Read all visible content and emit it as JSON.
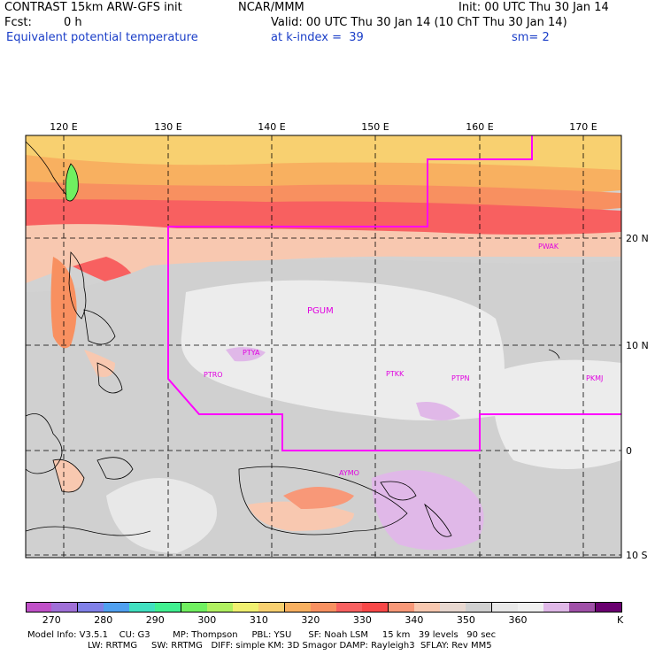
{
  "header": {
    "model_title": "CONTRAST 15km ARW-GFS init",
    "org": "NCAR/MMM",
    "init_text": "Init: 00 UTC Thu 30 Jan 14",
    "fcst_label": "Fcst:",
    "fcst_value": "0 h",
    "valid_text": "Valid: 00 UTC Thu 30 Jan 14 (10 ChT Thu 30 Jan 14)",
    "field_name": "Equivalent potential temperature",
    "level_text": "at k-index =  39",
    "smooth_text": "sm= 2"
  },
  "axes": {
    "lon_labels": [
      "120 E",
      "130 E",
      "140 E",
      "150 E",
      "160 E",
      "170 E"
    ],
    "lat_labels": [
      "20 N",
      "10 N",
      "0",
      "10 S"
    ]
  },
  "stations": [
    "PGUM",
    "PTYA",
    "PTRO",
    "PTKK",
    "PTPN",
    "PKMJ",
    "PWAK",
    "AYMO"
  ],
  "colorbar": {
    "colors": [
      "#c050c8",
      "#a070d8",
      "#8080e8",
      "#50a0f0",
      "#40e0c0",
      "#40f090",
      "#70f060",
      "#b0f060",
      "#f0f070",
      "#f8d070",
      "#f8b060",
      "#f89060",
      "#f86060",
      "#f84848",
      "#f89878",
      "#f8c8b0",
      "#e8d8d0",
      "#d0d0d0",
      "#e8e8e8",
      "#f0f0f0",
      "#e0b8e8",
      "#a050a8",
      "#6a0070"
    ],
    "labels": [
      "270",
      "280",
      "290",
      "300",
      "310",
      "320",
      "330",
      "340",
      "350",
      "360"
    ],
    "unit": "K"
  },
  "footer": {
    "line1": "Model Info: V3.5.1    CU: G3        MP: Thompson     PBL: YSU      SF: Noah LSM     15 km   39 levels   90 sec",
    "line2": "LW: RRTMG     SW: RRTMG   DIFF: simple KM: 3D Smagor DAMP: Rayleigh3  SFLAY: Rev MM5"
  }
}
